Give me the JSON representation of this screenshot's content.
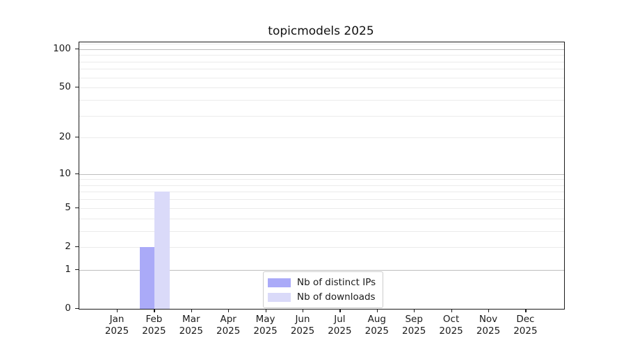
{
  "title": "topicmodels 2025",
  "chart_data": {
    "type": "bar",
    "title": "topicmodels 2025",
    "categories": [
      "Jan 2025",
      "Feb 2025",
      "Mar 2025",
      "Apr 2025",
      "May 2025",
      "Jun 2025",
      "Jul 2025",
      "Aug 2025",
      "Sep 2025",
      "Oct 2025",
      "Nov 2025",
      "Dec 2025"
    ],
    "x_tick_labels": [
      {
        "month": "Jan",
        "year": "2025"
      },
      {
        "month": "Feb",
        "year": "2025"
      },
      {
        "month": "Mar",
        "year": "2025"
      },
      {
        "month": "Apr",
        "year": "2025"
      },
      {
        "month": "May",
        "year": "2025"
      },
      {
        "month": "Jun",
        "year": "2025"
      },
      {
        "month": "Jul",
        "year": "2025"
      },
      {
        "month": "Aug",
        "year": "2025"
      },
      {
        "month": "Sep",
        "year": "2025"
      },
      {
        "month": "Oct",
        "year": "2025"
      },
      {
        "month": "Nov",
        "year": "2025"
      },
      {
        "month": "Dec",
        "year": "2025"
      }
    ],
    "series": [
      {
        "name": "Nb of distinct IPs",
        "color": "#aaaaf8",
        "values": [
          0,
          2,
          0,
          0,
          0,
          0,
          0,
          0,
          0,
          0,
          0,
          0
        ]
      },
      {
        "name": "Nb of downloads",
        "color": "#dadaf9",
        "values": [
          0,
          7,
          0,
          0,
          0,
          0,
          0,
          0,
          0,
          0,
          0,
          0
        ]
      }
    ],
    "xlabel": "",
    "ylabel": "",
    "y_scale": "log10(value+1)",
    "ylim": [
      0,
      113
    ],
    "y_ticks": [
      0,
      1,
      2,
      5,
      10,
      20,
      50,
      100
    ],
    "y_major_gridlines": [
      1,
      10,
      100
    ],
    "y_minor_gridlines": [
      2,
      3,
      4,
      5,
      6,
      7,
      8,
      9,
      20,
      30,
      40,
      50,
      60,
      70,
      80,
      90,
      110
    ],
    "grid": "horizontal",
    "legend_position": "inside-bottom-center"
  },
  "colors": {
    "distinct_ips_bar": "#aaaaf8",
    "downloads_bar": "#dadaf9",
    "major_grid": "#bdbdbd",
    "minor_grid": "#ebebeb",
    "spine": "#1a1a1a",
    "legend_border": "#cccccc",
    "background": "#ffffff"
  }
}
